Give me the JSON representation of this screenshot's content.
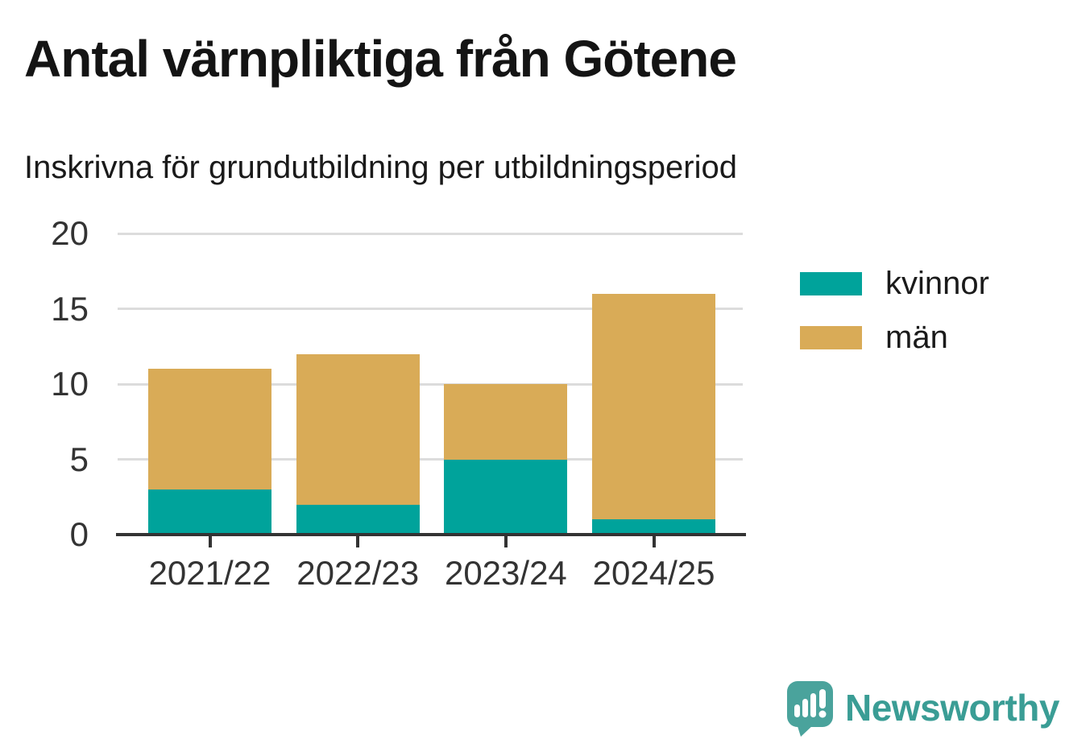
{
  "header": {
    "title": "Antal värnpliktiga från Götene",
    "subtitle": "Inskrivna för grundutbildning per utbildningsperiod"
  },
  "chart_data": {
    "type": "bar",
    "stacked": true,
    "title": "Antal värnpliktiga från Götene",
    "subtitle": "Inskrivna för grundutbildning per utbildningsperiod",
    "categories": [
      "2021/22",
      "2022/23",
      "2023/24",
      "2024/25"
    ],
    "series": [
      {
        "name": "kvinnor",
        "color": "#00a39b",
        "values": [
          3,
          2,
          5,
          1
        ]
      },
      {
        "name": "män",
        "color": "#d9ab57",
        "values": [
          8,
          10,
          5,
          15
        ]
      }
    ],
    "totals": [
      11,
      12,
      10,
      16
    ],
    "xlabel": "",
    "ylabel": "",
    "ylim": [
      0,
      20
    ],
    "yticks": [
      0,
      5,
      10,
      15,
      20
    ],
    "grid": true,
    "legend_position": "right"
  },
  "colors": {
    "axis": "#333333",
    "grid": "#dcdcdc",
    "logo_bubble": "#4aa39c",
    "wordmark": "#3a9d95"
  },
  "footer": {
    "brand": "Newsworthy"
  }
}
